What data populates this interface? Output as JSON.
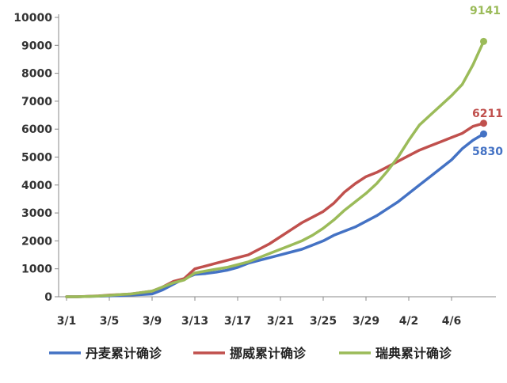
{
  "chart_data": {
    "type": "line",
    "x": [
      "3/1",
      "3/2",
      "3/3",
      "3/4",
      "3/5",
      "3/6",
      "3/7",
      "3/8",
      "3/9",
      "3/10",
      "3/11",
      "3/12",
      "3/13",
      "3/14",
      "3/15",
      "3/16",
      "3/17",
      "3/18",
      "3/19",
      "3/20",
      "3/21",
      "3/22",
      "3/23",
      "3/24",
      "3/25",
      "3/26",
      "3/27",
      "3/28",
      "3/29",
      "3/30",
      "3/31",
      "4/1",
      "4/2",
      "4/3",
      "4/4",
      "4/5",
      "4/6",
      "4/7",
      "4/8",
      "4/9"
    ],
    "x_tick_labels": [
      "3/1",
      "3/5",
      "3/9",
      "3/13",
      "3/17",
      "3/21",
      "3/25",
      "3/29",
      "4/2",
      "4/6"
    ],
    "ylim": [
      0,
      10000
    ],
    "y_ticks": [
      0,
      1000,
      2000,
      3000,
      4000,
      5000,
      6000,
      7000,
      8000,
      9000,
      10000
    ],
    "grid": false,
    "legend_position": "bottom",
    "series": [
      {
        "name": "丹麦累计确诊",
        "color": "#4472C4",
        "end_label": "5830",
        "values": [
          0,
          0,
          10,
          20,
          30,
          40,
          60,
          80,
          100,
          250,
          450,
          650,
          800,
          830,
          880,
          950,
          1050,
          1200,
          1300,
          1400,
          1500,
          1600,
          1700,
          1850,
          2000,
          2200,
          2350,
          2500,
          2700,
          2900,
          3150,
          3400,
          3700,
          4000,
          4300,
          4600,
          4900,
          5300,
          5600,
          5830
        ]
      },
      {
        "name": "挪威累计确诊",
        "color": "#C0504D",
        "end_label": "6211",
        "values": [
          0,
          0,
          15,
          30,
          60,
          80,
          100,
          150,
          200,
          350,
          550,
          650,
          1000,
          1100,
          1200,
          1300,
          1400,
          1500,
          1700,
          1900,
          2150,
          2400,
          2650,
          2850,
          3050,
          3350,
          3750,
          4050,
          4300,
          4450,
          4650,
          4850,
          5050,
          5250,
          5400,
          5550,
          5700,
          5850,
          6100,
          6211
        ]
      },
      {
        "name": "瑞典累计确诊",
        "color": "#9BBB59",
        "end_label": "9141",
        "values": [
          0,
          0,
          10,
          25,
          50,
          80,
          100,
          150,
          200,
          350,
          500,
          600,
          850,
          920,
          990,
          1050,
          1150,
          1250,
          1400,
          1550,
          1700,
          1850,
          2000,
          2200,
          2450,
          2750,
          3100,
          3400,
          3700,
          4050,
          4500,
          5000,
          5600,
          6150,
          6500,
          6850,
          7200,
          7600,
          8300,
          9141
        ]
      }
    ]
  }
}
